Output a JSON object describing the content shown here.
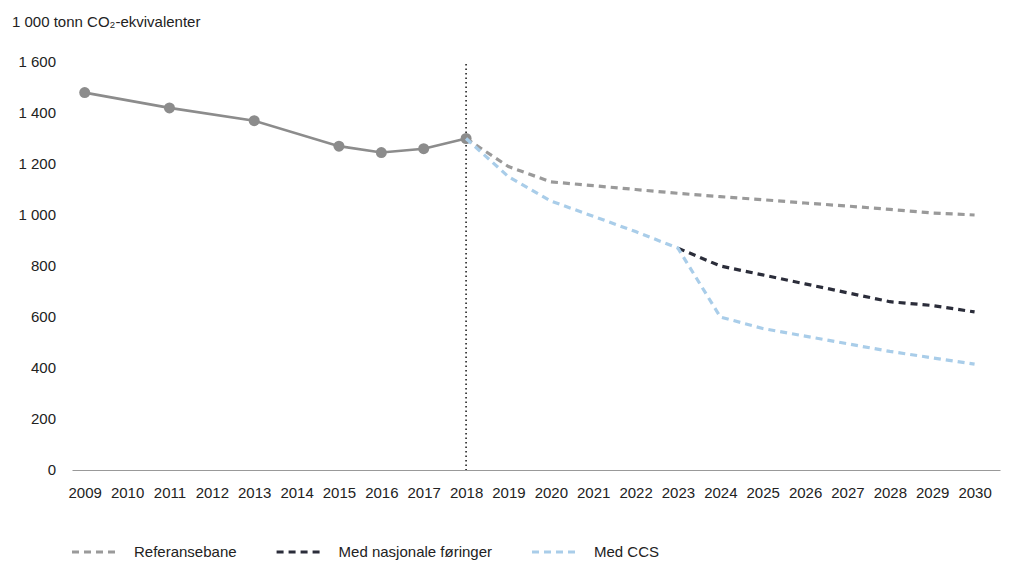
{
  "chart_data": {
    "type": "line",
    "y_label": "1 000 tonn CO₂-ekvivalenter",
    "xlim": [
      2008.7,
      2030.6
    ],
    "xticks": [
      2009,
      2010,
      2011,
      2012,
      2013,
      2014,
      2015,
      2016,
      2017,
      2018,
      2019,
      2020,
      2021,
      2022,
      2023,
      2024,
      2025,
      2026,
      2027,
      2028,
      2029,
      2030
    ],
    "ylim": [
      0,
      1600
    ],
    "yticks": [
      0,
      200,
      400,
      600,
      800,
      {
        "value": 1000,
        "label": "1 000"
      },
      {
        "value": 1200,
        "label": "1 200"
      },
      {
        "value": 1400,
        "label": "1 400"
      },
      {
        "value": 1600,
        "label": "1 600"
      }
    ],
    "grid": false,
    "legend": "bottom",
    "vline_x": 2018,
    "series": [
      {
        "color": "#8c8c8c",
        "line_style": "solid",
        "marker": "circle",
        "x": [
          2009,
          2011,
          2013,
          2015,
          2016,
          2017,
          2018
        ],
        "values": [
          1480,
          1420,
          1370,
          1270,
          1245,
          1260,
          1300
        ]
      },
      {
        "name": "Referansebane",
        "color": "#9a9a9a",
        "line_style": "dashed",
        "x": [
          2018,
          2019,
          2020,
          2021,
          2022,
          2023,
          2024,
          2025,
          2026,
          2027,
          2028,
          2029,
          2030
        ],
        "values": [
          1300,
          1190,
          1130,
          1115,
          1100,
          1085,
          1072,
          1060,
          1047,
          1035,
          1022,
          1008,
          1000
        ]
      },
      {
        "name": "Med nasjonale føringer",
        "color": "#2b2d3a",
        "line_style": "dashed",
        "x": [
          2023,
          2024,
          2025,
          2026,
          2027,
          2028,
          2029,
          2030
        ],
        "values": [
          870,
          800,
          765,
          730,
          695,
          660,
          645,
          620
        ]
      },
      {
        "name": "Med CCS",
        "color": "#a9cde9",
        "line_style": "dashed",
        "x": [
          2018,
          2019,
          2020,
          2021,
          2022,
          2023,
          2024,
          2025,
          2026,
          2027,
          2028,
          2029,
          2030
        ],
        "values": [
          1300,
          1150,
          1055,
          995,
          935,
          870,
          600,
          555,
          525,
          495,
          465,
          440,
          415
        ]
      }
    ]
  }
}
